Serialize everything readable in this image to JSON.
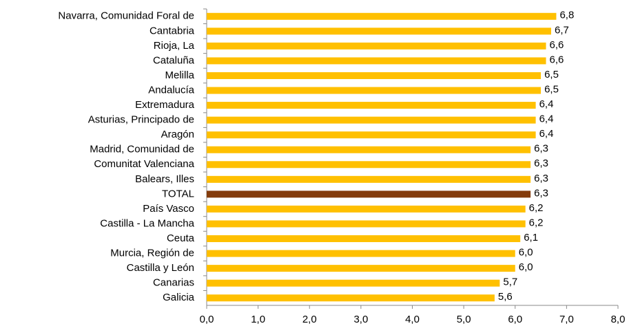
{
  "chart_data": {
    "type": "bar",
    "orientation": "horizontal",
    "categories": [
      "Navarra, Comunidad Foral de",
      "Cantabria",
      "Rioja, La",
      "Cataluña",
      "Melilla",
      "Andalucía",
      "Extremadura",
      "Asturias, Principado de",
      "Aragón",
      "Madrid, Comunidad de",
      "Comunitat Valenciana",
      "Balears, Illes",
      "TOTAL",
      "País Vasco",
      "Castilla - La Mancha",
      "Ceuta",
      "Murcia, Región de",
      "Castilla y León",
      "Canarias",
      "Galicia"
    ],
    "values": [
      6.8,
      6.7,
      6.6,
      6.6,
      6.5,
      6.5,
      6.4,
      6.4,
      6.4,
      6.3,
      6.3,
      6.3,
      6.3,
      6.2,
      6.2,
      6.1,
      6.0,
      6.0,
      5.7,
      5.6
    ],
    "value_labels": [
      "6,8",
      "6,7",
      "6,6",
      "6,6",
      "6,5",
      "6,5",
      "6,4",
      "6,4",
      "6,4",
      "6,3",
      "6,3",
      "6,3",
      "6,3",
      "6,2",
      "6,2",
      "6,1",
      "6,0",
      "6,0",
      "5,7",
      "5,6"
    ],
    "colors": [
      "#FFC000",
      "#FFC000",
      "#FFC000",
      "#FFC000",
      "#FFC000",
      "#FFC000",
      "#FFC000",
      "#FFC000",
      "#FFC000",
      "#FFC000",
      "#FFC000",
      "#FFC000",
      "#843C0C",
      "#FFC000",
      "#FFC000",
      "#FFC000",
      "#FFC000",
      "#FFC000",
      "#FFC000",
      "#FFC000"
    ],
    "xlim": [
      0,
      8
    ],
    "xticks": [
      {
        "value": 0,
        "label": "0,0"
      },
      {
        "value": 1,
        "label": "1,0"
      },
      {
        "value": 2,
        "label": "2,0"
      },
      {
        "value": 3,
        "label": "3,0"
      },
      {
        "value": 4,
        "label": "4,0"
      },
      {
        "value": 5,
        "label": "5,0"
      },
      {
        "value": 6,
        "label": "6,0"
      },
      {
        "value": 7,
        "label": "7,0"
      },
      {
        "value": 8,
        "label": "8,0"
      }
    ],
    "grid": false
  }
}
